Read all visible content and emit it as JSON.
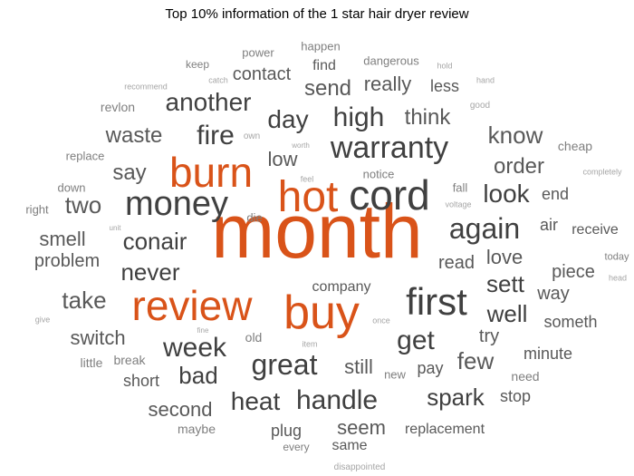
{
  "title": "Top 10% information of the 1 star hair dryer review",
  "colors": {
    "highlight": "#d95319",
    "dark": "#404040",
    "medium": "#595959",
    "light": "#7f7f7f",
    "faint": "#a6a6a6"
  },
  "words": [
    {
      "text": "month",
      "color": "highlight"
    },
    {
      "text": "review",
      "color": "highlight"
    },
    {
      "text": "buy",
      "color": "highlight"
    },
    {
      "text": "hot",
      "color": "highlight"
    },
    {
      "text": "burn",
      "color": "highlight"
    },
    {
      "text": "cord",
      "color": "dark"
    },
    {
      "text": "first",
      "color": "dark"
    },
    {
      "text": "money",
      "color": "dark"
    },
    {
      "text": "warranty",
      "color": "dark"
    },
    {
      "text": "high",
      "color": "dark"
    },
    {
      "text": "fire",
      "color": "dark"
    },
    {
      "text": "again",
      "color": "dark"
    },
    {
      "text": "week",
      "color": "dark"
    },
    {
      "text": "great",
      "color": "dark"
    },
    {
      "text": "handle",
      "color": "dark"
    },
    {
      "text": "get",
      "color": "dark"
    },
    {
      "text": "another",
      "color": "dark"
    },
    {
      "text": "day",
      "color": "dark"
    },
    {
      "text": "never",
      "color": "dark"
    },
    {
      "text": "conair",
      "color": "dark"
    },
    {
      "text": "look",
      "color": "dark"
    },
    {
      "text": "heat",
      "color": "dark"
    },
    {
      "text": "spark",
      "color": "dark"
    },
    {
      "text": "well",
      "color": "dark"
    },
    {
      "text": "sett",
      "color": "dark"
    },
    {
      "text": "bad",
      "color": "dark"
    },
    {
      "text": "know",
      "color": "medium"
    },
    {
      "text": "order",
      "color": "medium"
    },
    {
      "text": "waste",
      "color": "medium"
    },
    {
      "text": "send",
      "color": "medium"
    },
    {
      "text": "think",
      "color": "medium"
    },
    {
      "text": "two",
      "color": "medium"
    },
    {
      "text": "say",
      "color": "medium"
    },
    {
      "text": "take",
      "color": "medium"
    },
    {
      "text": "few",
      "color": "medium"
    },
    {
      "text": "really",
      "color": "medium"
    },
    {
      "text": "low",
      "color": "medium"
    },
    {
      "text": "second",
      "color": "medium"
    },
    {
      "text": "switch",
      "color": "medium"
    },
    {
      "text": "still",
      "color": "medium"
    },
    {
      "text": "seem",
      "color": "medium"
    },
    {
      "text": "love",
      "color": "medium"
    },
    {
      "text": "smell",
      "color": "medium"
    },
    {
      "text": "problem",
      "color": "medium"
    },
    {
      "text": "contact",
      "color": "medium"
    },
    {
      "text": "read",
      "color": "medium"
    },
    {
      "text": "piece",
      "color": "medium"
    },
    {
      "text": "way",
      "color": "medium"
    },
    {
      "text": "try",
      "color": "medium"
    },
    {
      "text": "short",
      "color": "medium"
    },
    {
      "text": "end",
      "color": "medium"
    },
    {
      "text": "air",
      "color": "medium"
    },
    {
      "text": "less",
      "color": "medium"
    },
    {
      "text": "company",
      "color": "medium"
    },
    {
      "text": "stop",
      "color": "medium"
    },
    {
      "text": "someth",
      "color": "medium"
    },
    {
      "text": "minute",
      "color": "medium"
    },
    {
      "text": "pay",
      "color": "medium"
    },
    {
      "text": "plug",
      "color": "medium"
    },
    {
      "text": "replacement",
      "color": "medium"
    },
    {
      "text": "find",
      "color": "medium"
    },
    {
      "text": "same",
      "color": "medium"
    },
    {
      "text": "receive",
      "color": "medium"
    },
    {
      "text": "need",
      "color": "light"
    },
    {
      "text": "old",
      "color": "light"
    },
    {
      "text": "maybe",
      "color": "light"
    },
    {
      "text": "revlon",
      "color": "light"
    },
    {
      "text": "break",
      "color": "light"
    },
    {
      "text": "little",
      "color": "light"
    },
    {
      "text": "cheap",
      "color": "light"
    },
    {
      "text": "dangerous",
      "color": "light"
    },
    {
      "text": "power",
      "color": "light"
    },
    {
      "text": "happen",
      "color": "light"
    },
    {
      "text": "replace",
      "color": "light"
    },
    {
      "text": "notice",
      "color": "light"
    },
    {
      "text": "down",
      "color": "light"
    },
    {
      "text": "right",
      "color": "light"
    },
    {
      "text": "die",
      "color": "light"
    },
    {
      "text": "new",
      "color": "light"
    },
    {
      "text": "fall",
      "color": "light"
    },
    {
      "text": "keep",
      "color": "light"
    },
    {
      "text": "every",
      "color": "light"
    },
    {
      "text": "today",
      "color": "light"
    },
    {
      "text": "own",
      "color": "faint"
    },
    {
      "text": "good",
      "color": "faint"
    },
    {
      "text": "voltage",
      "color": "faint"
    },
    {
      "text": "catch",
      "color": "faint"
    },
    {
      "text": "recommend",
      "color": "faint"
    },
    {
      "text": "hold",
      "color": "faint"
    },
    {
      "text": "hand",
      "color": "faint"
    },
    {
      "text": "completely",
      "color": "faint"
    },
    {
      "text": "feel",
      "color": "faint"
    },
    {
      "text": "worth",
      "color": "faint"
    },
    {
      "text": "unit",
      "color": "faint"
    },
    {
      "text": "item",
      "color": "faint"
    },
    {
      "text": "once",
      "color": "faint"
    },
    {
      "text": "fine",
      "color": "faint"
    },
    {
      "text": "give",
      "color": "faint"
    },
    {
      "text": "head",
      "color": "faint"
    },
    {
      "text": "disappointed",
      "color": "faint"
    }
  ]
}
